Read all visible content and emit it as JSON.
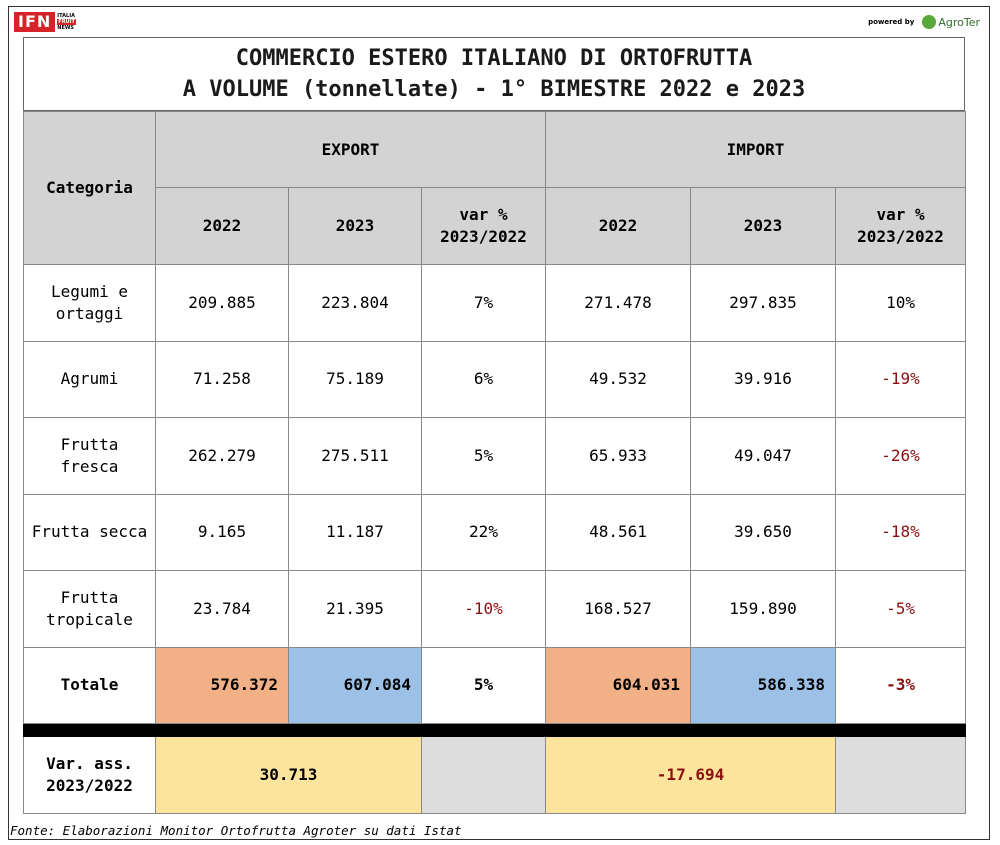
{
  "header": {
    "ifn_logo": "IFN",
    "ifn_sub": [
      "ITALIA",
      "FRUIT",
      "NEWS"
    ],
    "powered_by": "powered by",
    "agroter_logo": "AgroTer"
  },
  "chart_data": {
    "type": "table",
    "title": [
      "COMMERCIO ESTERO ITALIANO DI ORTOFRUTTA",
      "A VOLUME (tonnellate) - 1° BIMESTRE 2022 e 2023"
    ],
    "columns": {
      "category": "Categoria",
      "groups": [
        "EXPORT",
        "IMPORT"
      ],
      "sub": [
        "2022",
        "2023",
        "var %\n2023/2022"
      ]
    },
    "rows": [
      {
        "label": "Legumi e ortaggi",
        "export": [
          "209.885",
          "223.804",
          "7%"
        ],
        "import": [
          "271.478",
          "297.835",
          "10%"
        ]
      },
      {
        "label": "Agrumi",
        "export": [
          "71.258",
          "75.189",
          "6%"
        ],
        "import": [
          "49.532",
          "39.916",
          "-19%"
        ]
      },
      {
        "label": "Frutta fresca",
        "export": [
          "262.279",
          "275.511",
          "5%"
        ],
        "import": [
          "65.933",
          "49.047",
          "-26%"
        ]
      },
      {
        "label": "Frutta secca",
        "export": [
          "9.165",
          "11.187",
          "22%"
        ],
        "import": [
          "48.561",
          "39.650",
          "-18%"
        ]
      },
      {
        "label": "Frutta tropicale",
        "export": [
          "23.784",
          "21.395",
          "-10%"
        ],
        "import": [
          "168.527",
          "159.890",
          "-5%"
        ]
      }
    ],
    "total": {
      "label": "Totale",
      "export": [
        "576.372",
        "607.084",
        "5%"
      ],
      "import": [
        "604.031",
        "586.338",
        "-3%"
      ]
    },
    "var_ass": {
      "label": "Var. ass.\n2023/2022",
      "export": "30.713",
      "import": "-17.694"
    },
    "colors": {
      "negative": "#8b1010",
      "year2022": "#f2b087",
      "year2023": "#9dc1e6",
      "var_ass": "#fde49d",
      "header": "#d4d3d3"
    }
  },
  "source": "Fonte: Elaborazioni Monitor Ortofrutta Agroter su dati Istat"
}
